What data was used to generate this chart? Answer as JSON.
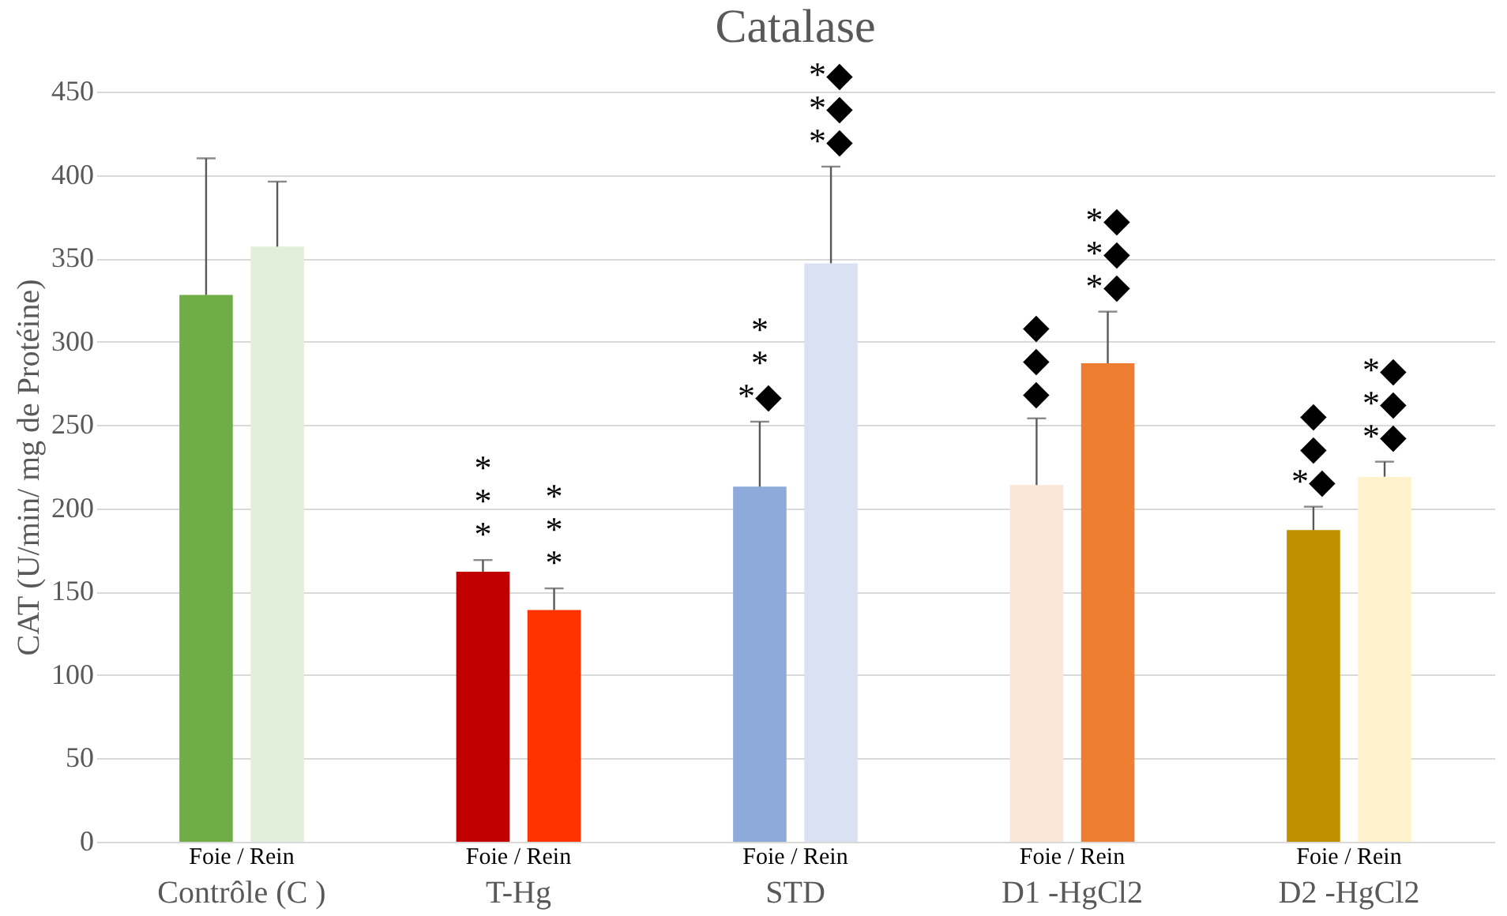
{
  "chart_data": {
    "type": "bar",
    "title": "Catalase",
    "ylabel": "CAT (U/min/ mg de Protéine)",
    "categories": [
      "Contrôle (C )",
      "T-Hg",
      "STD",
      "D1 -HgCl2",
      "D2 -HgCl2"
    ],
    "series": [
      {
        "colors": [
          "#70ad47",
          "#c00000",
          "#8eaadb",
          "#fbe5d6",
          "#bf8f00"
        ],
        "values": [
          328,
          162,
          213,
          214,
          187
        ],
        "errors": [
          82,
          7,
          39,
          40,
          14
        ],
        "value_labels": [
          null,
          "*\n*\n*",
          "*\n*\n*◆",
          "◆\n◆\n◆",
          " ◆\n ◆\n*◆"
        ]
      },
      {
        "colors": [
          "#e2efda",
          "#ff3300",
          "#d9e1f2",
          "#ed7d31",
          "#fff2cc"
        ],
        "values": [
          357,
          139,
          347,
          287,
          219
        ],
        "errors": [
          39,
          13,
          58,
          31,
          9
        ],
        "value_labels": [
          null,
          "*\n*\n*",
          "*◆\n*◆\n*◆",
          "*◆\n*◆\n*◆",
          "*◆\n*◆\n*◆"
        ]
      }
    ],
    "annotations": [
      "Foie / Rein",
      "Foie / Rein",
      "Foie / Rein",
      "Foie / Rein",
      "Foie / Rein"
    ],
    "ylim": [
      0,
      450
    ],
    "yticks": [
      0,
      50,
      100,
      150,
      200,
      250,
      300,
      350,
      400,
      450
    ],
    "grid": "y"
  }
}
